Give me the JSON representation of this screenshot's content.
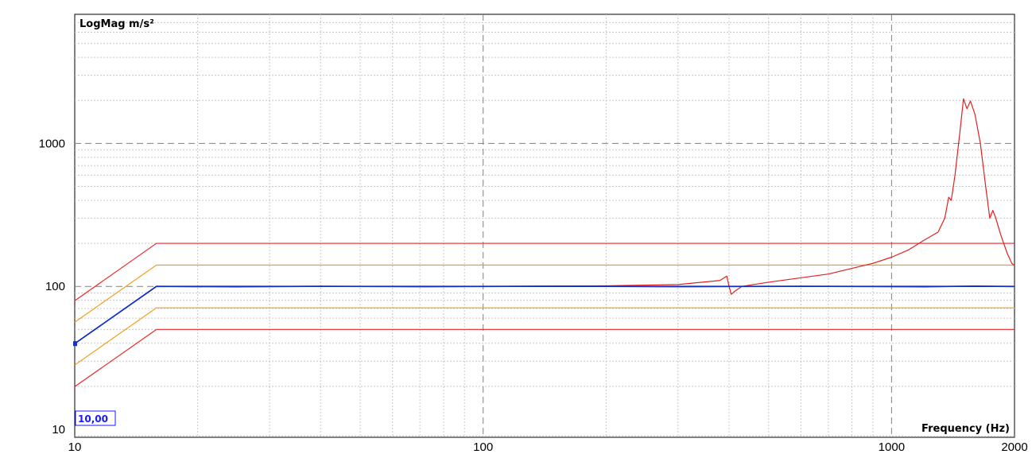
{
  "chart_data": {
    "type": "line",
    "y_axis_label": "LogMag m/s²",
    "x_axis_label": "Frequency (Hz)",
    "x_scale": "log",
    "y_scale": "log",
    "xlim": [
      10,
      2000
    ],
    "ylim": [
      8.8,
      8000
    ],
    "grid": true,
    "x_ticks": [
      {
        "value": 10,
        "label": "10"
      },
      {
        "value": 100,
        "label": "100"
      },
      {
        "value": 1000,
        "label": "1000"
      },
      {
        "value": 2000,
        "label": "2000"
      }
    ],
    "y_ticks": [
      {
        "value": 10,
        "label": "10"
      },
      {
        "value": 100,
        "label": "100"
      },
      {
        "value": 1000,
        "label": "1000"
      }
    ],
    "cursor_readout": "10,00",
    "colors": {
      "abort_limit": "#e8282a",
      "alarm_limit": "#f0a020",
      "reference": "#1d1d7a",
      "control": "#1030d0",
      "measured": "#e02020",
      "grid": "#c8c8c8",
      "major_grid": "#808080"
    },
    "series": [
      {
        "role": "upper-abort",
        "color": "#e8282a",
        "points": [
          [
            10,
            79.4
          ],
          [
            15.85,
            200
          ],
          [
            2000,
            200
          ]
        ]
      },
      {
        "role": "upper-alarm",
        "color": "#f0a020",
        "points": [
          [
            10,
            56.2
          ],
          [
            15.85,
            141
          ],
          [
            2000,
            141
          ]
        ]
      },
      {
        "role": "lower-alarm",
        "color": "#f0a020",
        "points": [
          [
            10,
            28.2
          ],
          [
            15.85,
            70.8
          ],
          [
            2000,
            70.8
          ]
        ]
      },
      {
        "role": "lower-abort",
        "color": "#e8282a",
        "points": [
          [
            10,
            19.9
          ],
          [
            15.85,
            50
          ],
          [
            2000,
            50
          ]
        ]
      },
      {
        "role": "measured-response",
        "color": "#e02020",
        "points": [
          [
            15.85,
            100
          ],
          [
            30,
            100
          ],
          [
            100,
            100
          ],
          [
            200,
            101
          ],
          [
            300,
            103
          ],
          [
            380,
            110
          ],
          [
            395,
            118
          ],
          [
            400,
            100
          ],
          [
            405,
            88
          ],
          [
            412,
            92
          ],
          [
            430,
            100
          ],
          [
            500,
            107
          ],
          [
            700,
            122
          ],
          [
            900,
            145
          ],
          [
            1000,
            160
          ],
          [
            1100,
            180
          ],
          [
            1200,
            210
          ],
          [
            1300,
            240
          ],
          [
            1350,
            300
          ],
          [
            1380,
            420
          ],
          [
            1400,
            400
          ],
          [
            1430,
            600
          ],
          [
            1470,
            1200
          ],
          [
            1500,
            2050
          ],
          [
            1530,
            1750
          ],
          [
            1560,
            1980
          ],
          [
            1600,
            1600
          ],
          [
            1650,
            1000
          ],
          [
            1700,
            500
          ],
          [
            1740,
            300
          ],
          [
            1770,
            340
          ],
          [
            1800,
            300
          ],
          [
            1850,
            230
          ],
          [
            1920,
            170
          ],
          [
            1970,
            145
          ],
          [
            2000,
            140
          ]
        ]
      },
      {
        "role": "control-reference",
        "color": "#1d1d7a",
        "points": [
          [
            10,
            39.8
          ],
          [
            15.85,
            100
          ],
          [
            2000,
            100
          ]
        ]
      },
      {
        "role": "control-signal",
        "color": "#1030d0",
        "points": [
          [
            10,
            39.8
          ],
          [
            15.85,
            100
          ],
          [
            25,
            99.3
          ],
          [
            40,
            100.2
          ],
          [
            70,
            99.5
          ],
          [
            150,
            100.3
          ],
          [
            300,
            99.6
          ],
          [
            600,
            100.2
          ],
          [
            1200,
            99.4
          ],
          [
            1600,
            100.5
          ],
          [
            2000,
            99.8
          ]
        ]
      }
    ]
  }
}
